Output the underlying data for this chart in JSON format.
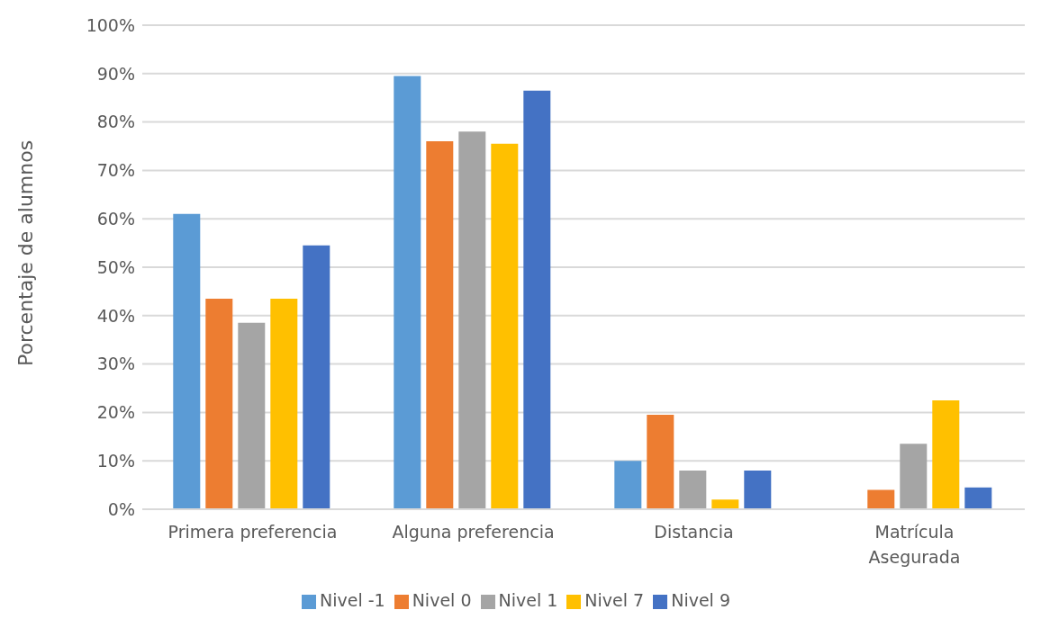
{
  "chart_data": {
    "type": "bar",
    "ylabel": "Porcentaje de alumnos",
    "categories": [
      "Primera preferencia",
      "Alguna preferencia",
      "Distancia",
      "Matrícula\nAsegurada"
    ],
    "series": [
      {
        "name": "Nivel -1",
        "color": "#5b9bd5",
        "values": [
          61,
          89.5,
          10,
          null
        ]
      },
      {
        "name": "Nivel 0",
        "color": "#ed7d31",
        "values": [
          43.5,
          76,
          19.5,
          4
        ]
      },
      {
        "name": "Nivel 1",
        "color": "#a5a5a5",
        "values": [
          38.5,
          78,
          8,
          13.5
        ]
      },
      {
        "name": "Nivel 7",
        "color": "#ffc000",
        "values": [
          43.5,
          75.5,
          2,
          22.5
        ]
      },
      {
        "name": "Nivel 9",
        "color": "#4472c4",
        "values": [
          54.5,
          86.5,
          8,
          4.5
        ]
      }
    ],
    "ylim": [
      0,
      100
    ],
    "yticks": [
      {
        "value": 0,
        "label": "0%"
      },
      {
        "value": 10,
        "label": "10%"
      },
      {
        "value": 20,
        "label": "20%"
      },
      {
        "value": 30,
        "label": "30%"
      },
      {
        "value": 40,
        "label": "40%"
      },
      {
        "value": 50,
        "label": "50%"
      },
      {
        "value": 60,
        "label": "60%"
      },
      {
        "value": 70,
        "label": "70%"
      },
      {
        "value": 80,
        "label": "80%"
      },
      {
        "value": 90,
        "label": "90%"
      },
      {
        "value": 100,
        "label": "100%"
      }
    ],
    "grid": "y",
    "legend": "bottom"
  }
}
